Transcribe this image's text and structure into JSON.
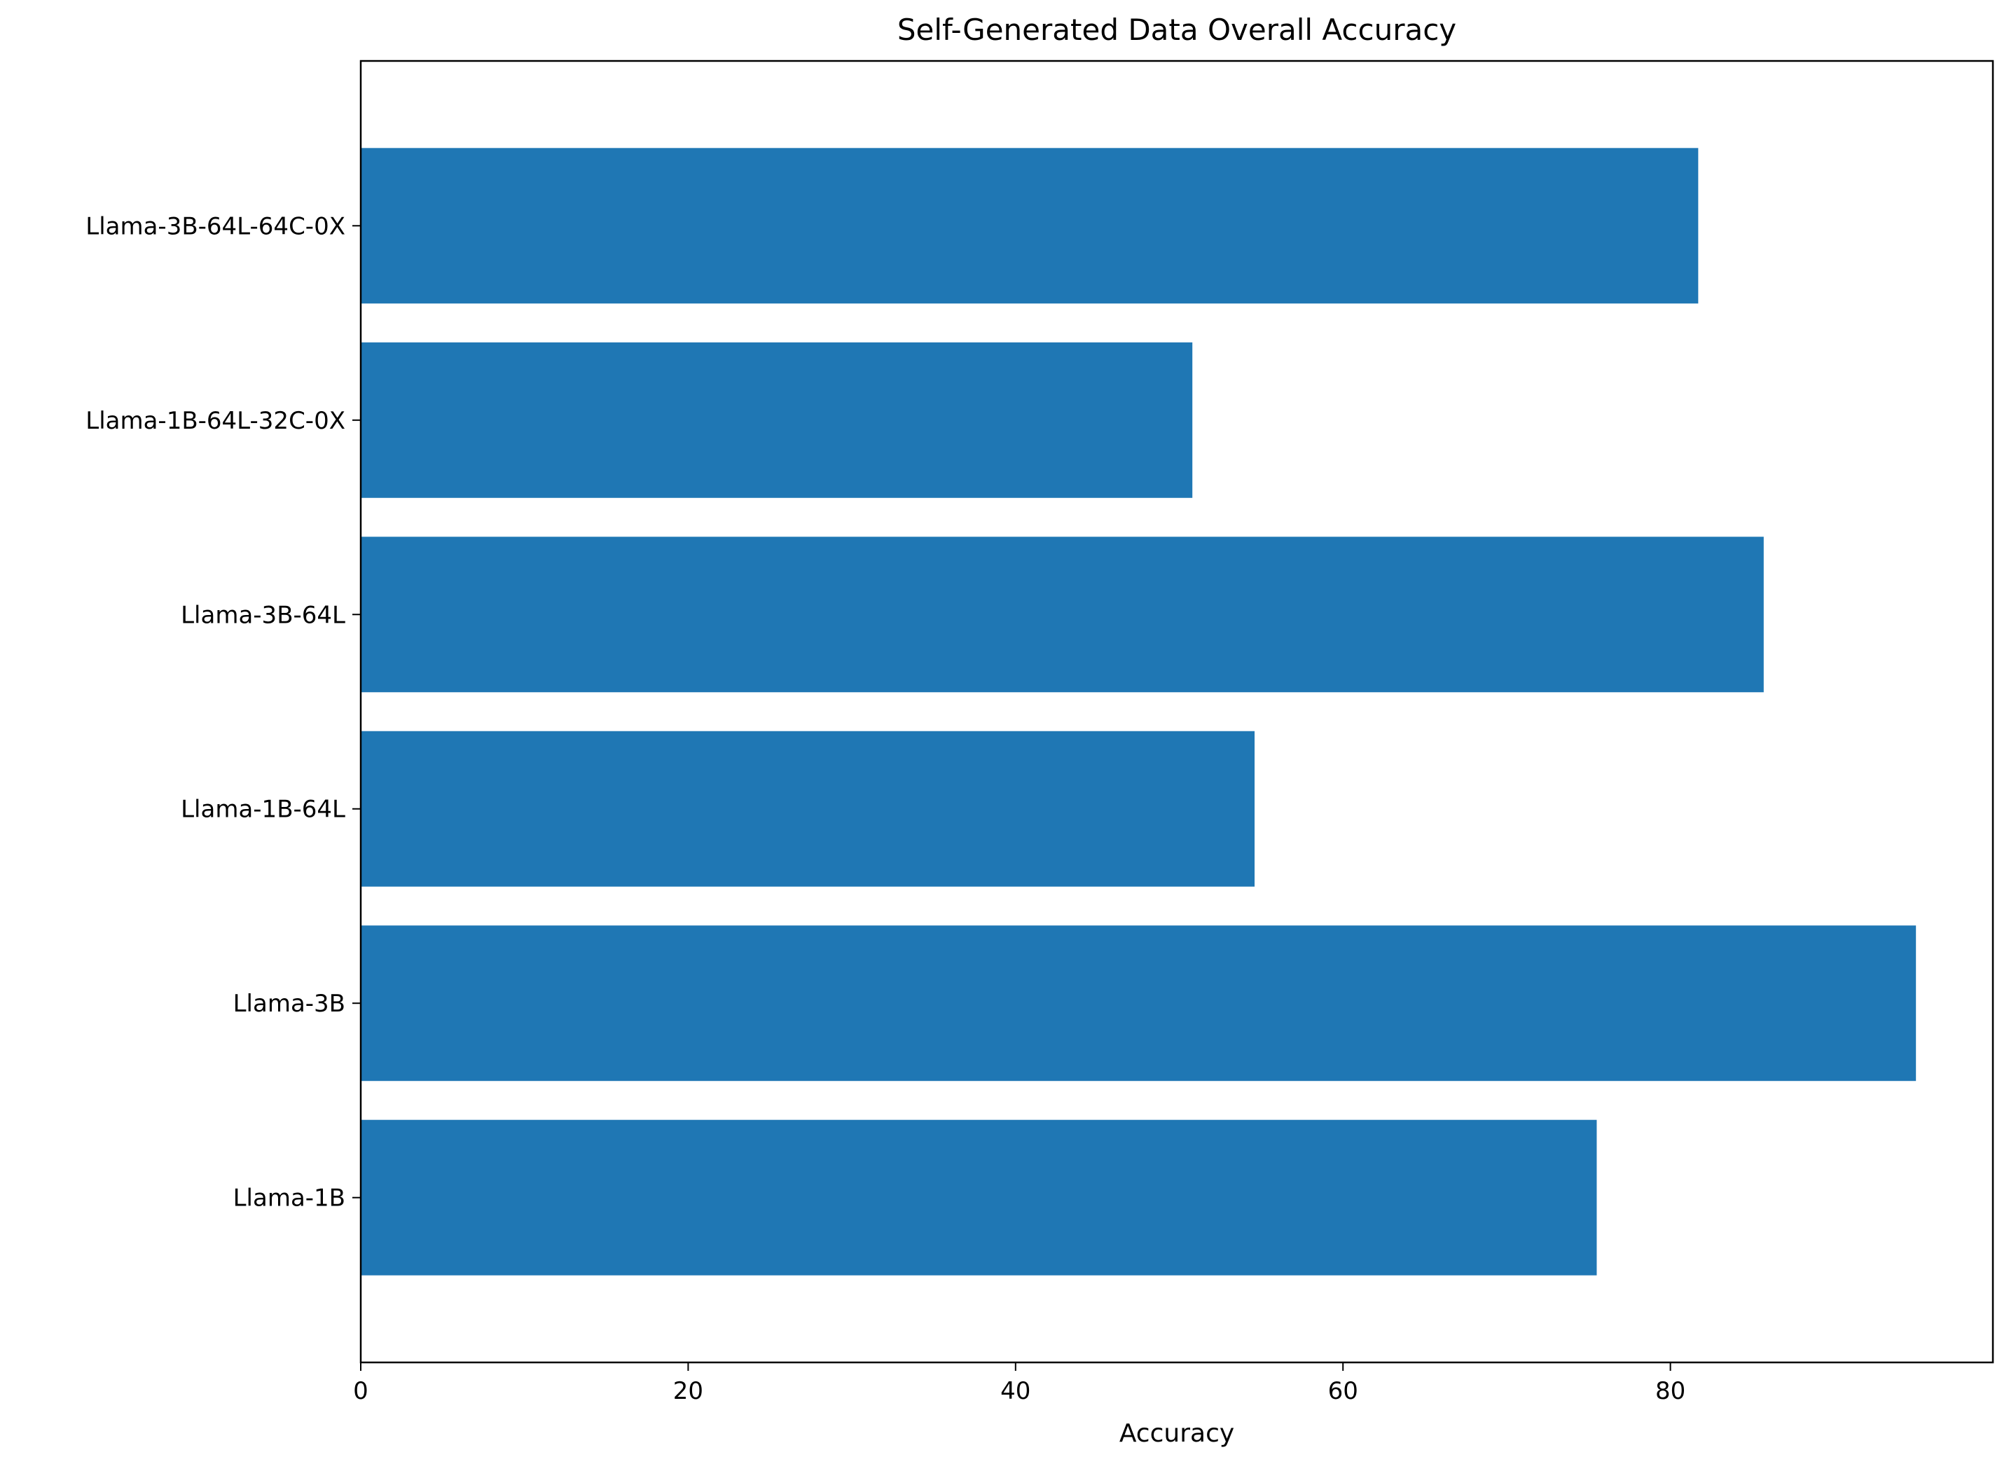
{
  "chart_data": {
    "type": "bar",
    "orientation": "horizontal",
    "title": "Self-Generated Data Overall Accuracy",
    "xlabel": "Accuracy",
    "ylabel": "",
    "categories": [
      "Llama-1B",
      "Llama-3B",
      "Llama-1B-64L",
      "Llama-3B-64L",
      "Llama-1B-64L-32C-0X",
      "Llama-3B-64L-64C-0X"
    ],
    "values": [
      75.5,
      95.0,
      54.6,
      85.7,
      50.8,
      81.7
    ],
    "xlim": [
      0,
      99.7
    ],
    "xticks": [
      "0",
      "20",
      "40",
      "60",
      "80"
    ],
    "xtick_values": [
      0,
      20,
      40,
      60,
      80
    ],
    "bar_color": "#1f77b4",
    "grid": false,
    "legend": "none"
  }
}
